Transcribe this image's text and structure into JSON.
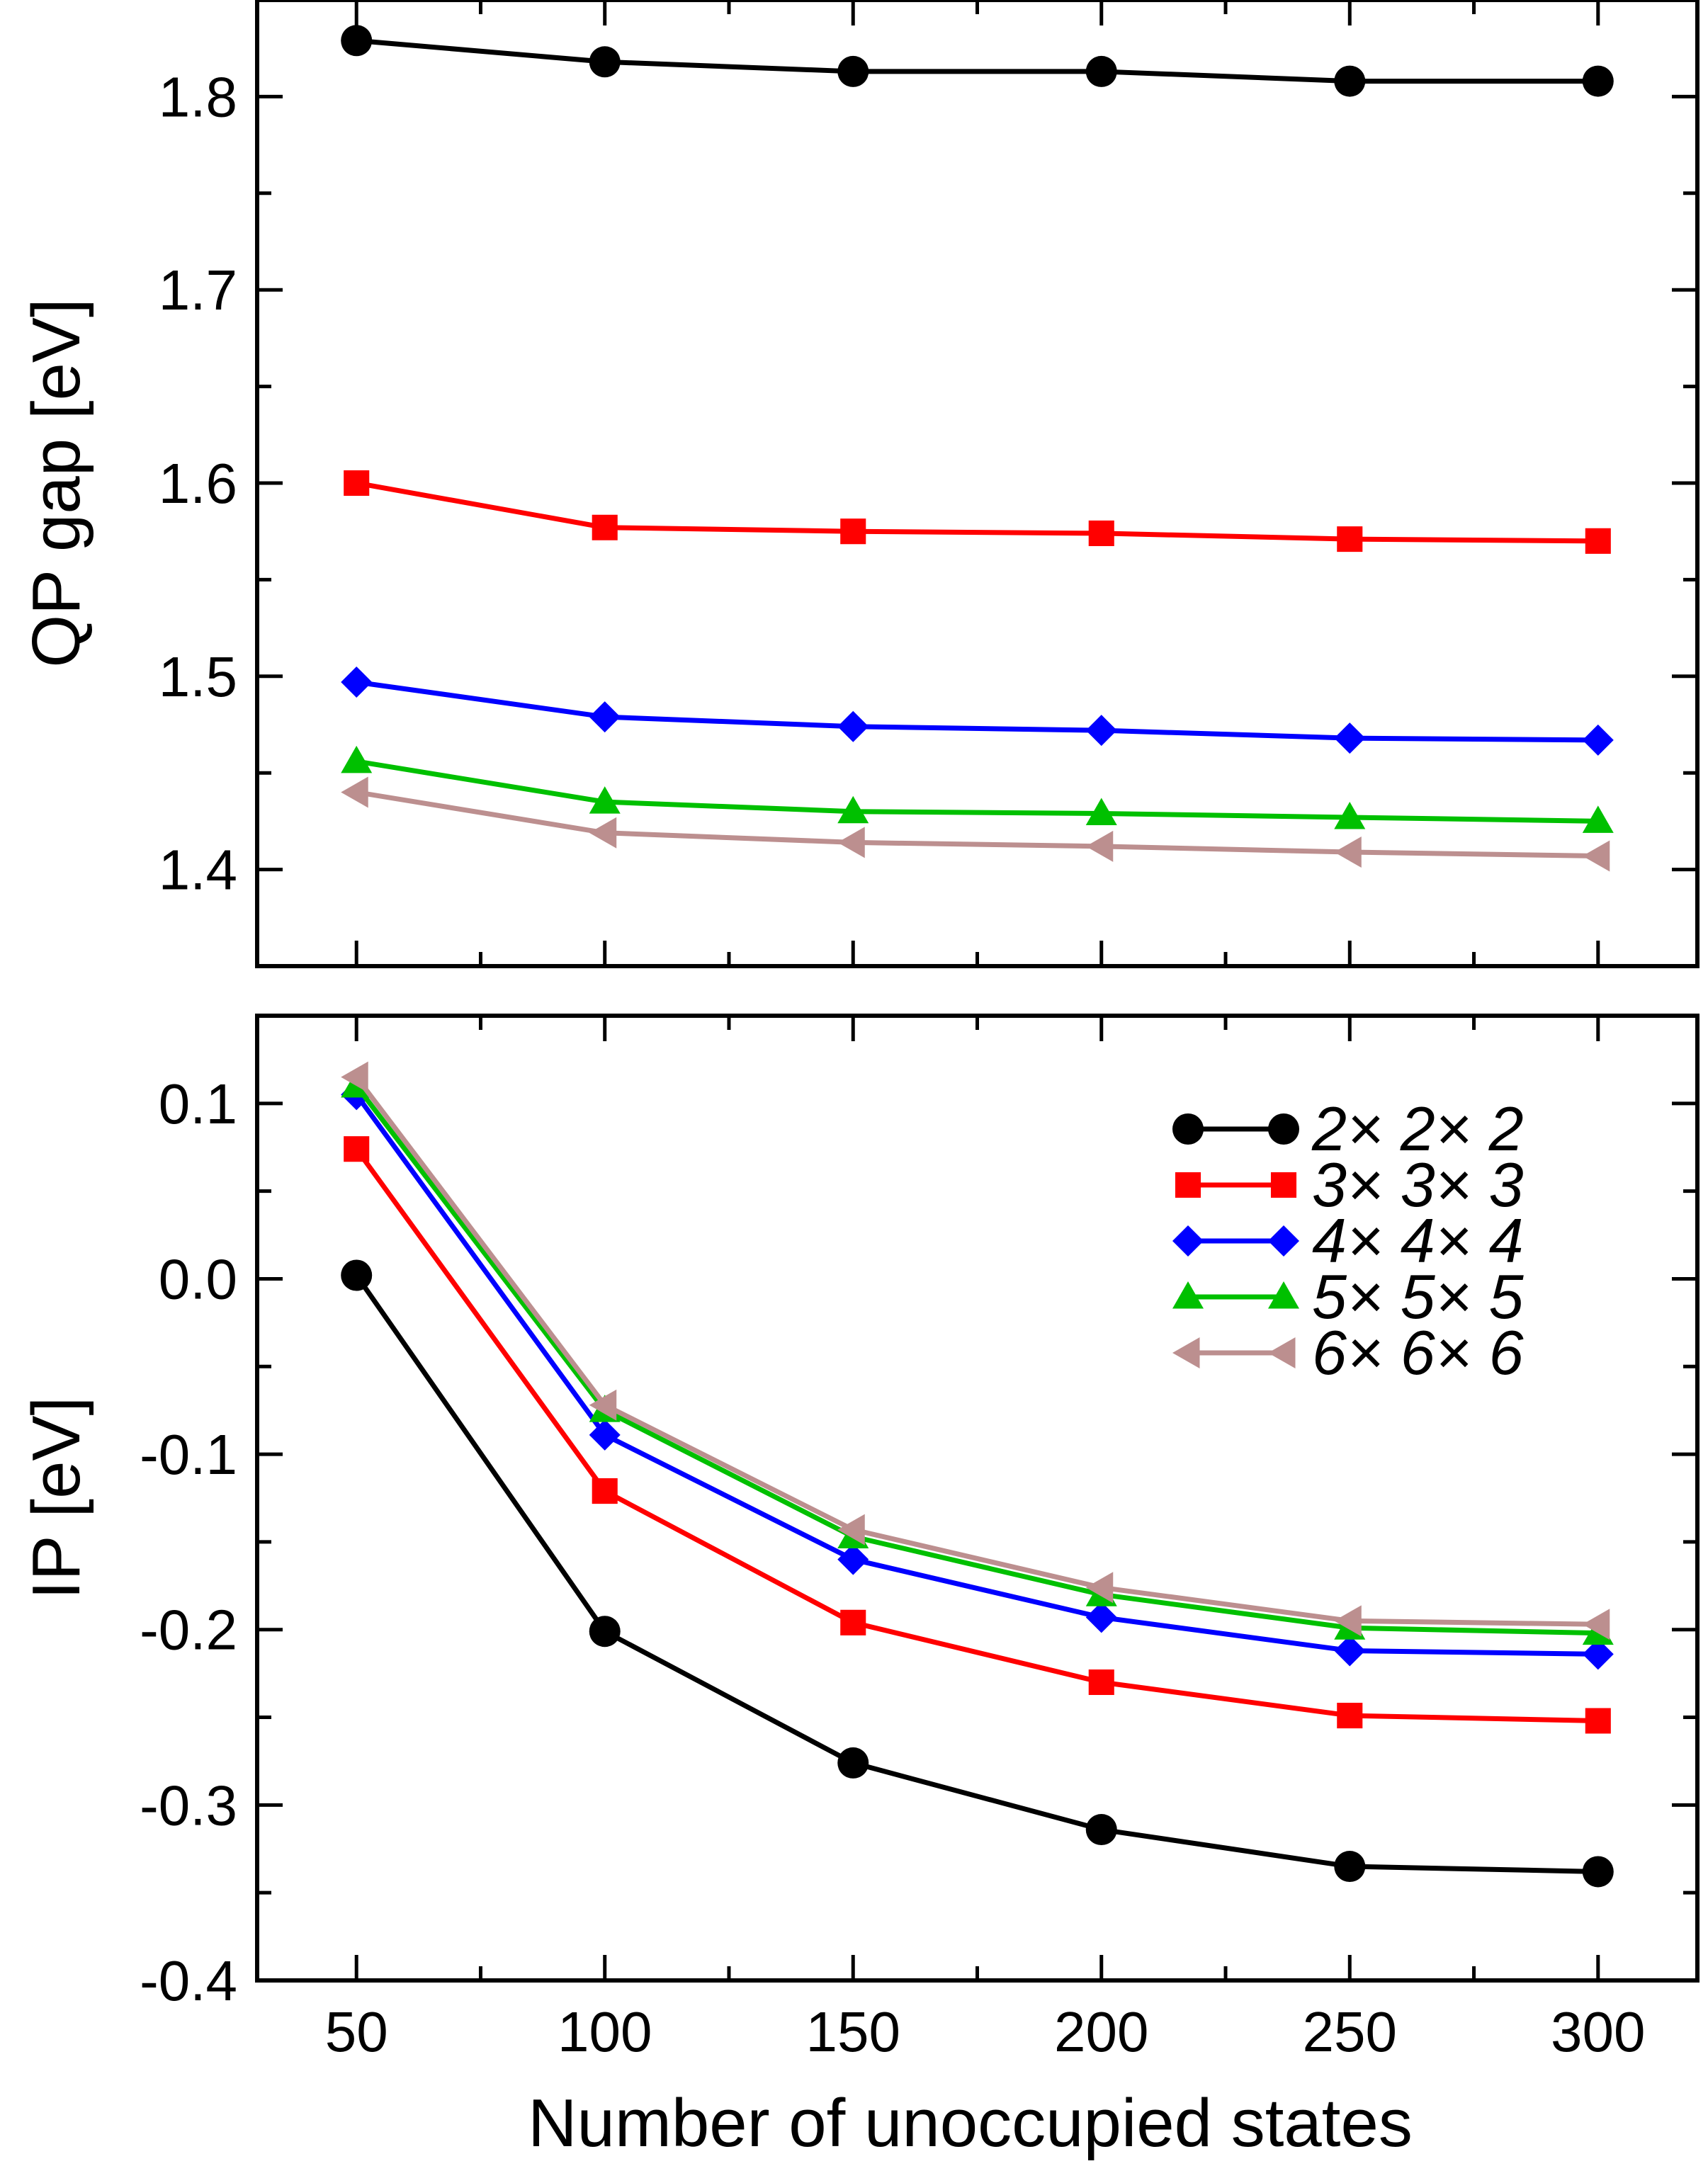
{
  "chart_data": [
    {
      "type": "line",
      "panel": "top",
      "title": "",
      "xlabel": "",
      "ylabel": "QP gap [eV]",
      "xlim": [
        30,
        320
      ],
      "ylim": [
        1.35,
        1.85
      ],
      "x": [
        50,
        100,
        150,
        200,
        250,
        300
      ],
      "xticks": [
        50,
        100,
        150,
        200,
        250,
        300
      ],
      "xtick_labels": [
        "",
        "",
        "",
        "",
        "",
        ""
      ],
      "yticks": [
        1.4,
        1.5,
        1.6,
        1.7,
        1.8
      ],
      "ytick_labels": [
        "1.4",
        "1.5",
        "1.6",
        "1.7",
        "1.8"
      ],
      "grid": false,
      "series": [
        {
          "name": "2×2×2",
          "color": "#000000",
          "marker": "circle",
          "values": [
            1.829,
            1.818,
            1.813,
            1.813,
            1.808,
            1.808
          ]
        },
        {
          "name": "3×3×3",
          "color": "#ff0000",
          "marker": "square",
          "values": [
            1.6,
            1.577,
            1.575,
            1.574,
            1.571,
            1.57
          ]
        },
        {
          "name": "4×4×4",
          "color": "#0000ff",
          "marker": "diamond",
          "values": [
            1.497,
            1.479,
            1.474,
            1.472,
            1.468,
            1.467
          ]
        },
        {
          "name": "5×5×5",
          "color": "#00c000",
          "marker": "triangle-up",
          "values": [
            1.456,
            1.435,
            1.43,
            1.429,
            1.427,
            1.425
          ]
        },
        {
          "name": "6×6×6",
          "color": "#bc8f8f",
          "marker": "triangle-left",
          "values": [
            1.44,
            1.419,
            1.414,
            1.412,
            1.409,
            1.407
          ]
        }
      ]
    },
    {
      "type": "line",
      "panel": "bottom",
      "title": "",
      "xlabel": "Number of unoccupied states",
      "ylabel": "IP [eV]",
      "xlim": [
        30,
        320
      ],
      "ylim": [
        -0.4,
        0.15
      ],
      "x": [
        50,
        100,
        150,
        200,
        250,
        300
      ],
      "xticks": [
        50,
        100,
        150,
        200,
        250,
        300
      ],
      "xtick_labels": [
        "50",
        "100",
        "150",
        "200",
        "250",
        "300"
      ],
      "yticks": [
        -0.4,
        -0.3,
        -0.2,
        -0.1,
        0.0,
        0.1
      ],
      "ytick_labels": [
        "-0.4",
        "-0.3",
        "-0.2",
        "-0.1",
        "0.0",
        "0.1"
      ],
      "grid": false,
      "legend_position": "top-right",
      "series": [
        {
          "name": "2×2×2",
          "color": "#000000",
          "marker": "circle",
          "values": [
            0.002,
            -0.201,
            -0.276,
            -0.314,
            -0.335,
            -0.338
          ]
        },
        {
          "name": "3×3×3",
          "color": "#ff0000",
          "marker": "square",
          "values": [
            0.074,
            -0.121,
            -0.196,
            -0.23,
            -0.249,
            -0.252
          ]
        },
        {
          "name": "4×4×4",
          "color": "#0000ff",
          "marker": "diamond",
          "values": [
            0.105,
            -0.089,
            -0.16,
            -0.193,
            -0.212,
            -0.214
          ]
        },
        {
          "name": "5×5×5",
          "color": "#00c000",
          "marker": "triangle-up",
          "values": [
            0.11,
            -0.075,
            -0.147,
            -0.18,
            -0.199,
            -0.202
          ]
        },
        {
          "name": "6×6×6",
          "color": "#bc8f8f",
          "marker": "triangle-left",
          "values": [
            0.115,
            -0.072,
            -0.143,
            -0.176,
            -0.195,
            -0.197
          ]
        }
      ],
      "legend": [
        {
          "label": "2× 2× 2",
          "series": 0
        },
        {
          "label": "3× 3× 3",
          "series": 1
        },
        {
          "label": "4× 4× 4",
          "series": 2
        },
        {
          "label": "5× 5× 5",
          "series": 3
        },
        {
          "label": "6× 6× 6",
          "series": 4
        }
      ]
    }
  ]
}
